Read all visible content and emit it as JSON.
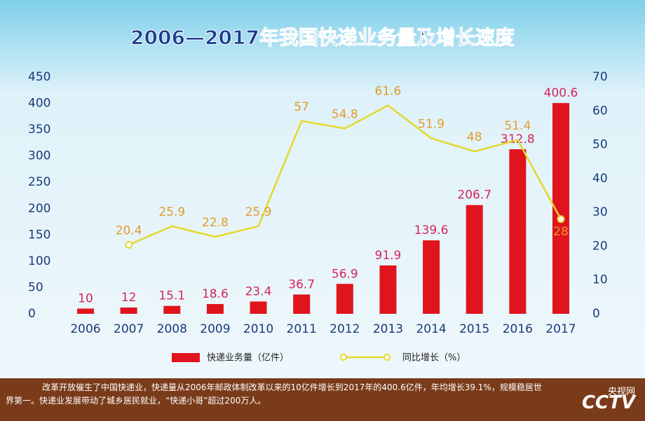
{
  "chart_data": {
    "type": "bar",
    "title": "2006—2017年我国快递业务量及增长速度",
    "categories": [
      "2006",
      "2007",
      "2008",
      "2009",
      "2010",
      "2011",
      "2012",
      "2013",
      "2014",
      "2015",
      "2016",
      "2017"
    ],
    "series": [
      {
        "name": "快递业务量（亿件）",
        "type": "bar",
        "color": "#e0141c",
        "label_color": "#d6245a",
        "values": [
          10,
          12,
          15.1,
          18.6,
          23.4,
          36.7,
          56.9,
          91.9,
          139.6,
          206.7,
          312.8,
          400.6
        ]
      },
      {
        "name": "同比增长（%）",
        "type": "line",
        "axis": "y2",
        "color": "#e5d82a",
        "label_color": "#e39a2a",
        "values": [
          null,
          20.4,
          25.9,
          22.8,
          25.9,
          57,
          54.8,
          61.6,
          51.9,
          48,
          51.4,
          28
        ]
      }
    ],
    "ylim": [
      0,
      450
    ],
    "yticks": [
      0,
      50,
      100,
      150,
      200,
      250,
      300,
      350,
      400,
      450
    ],
    "y2lim": [
      0,
      70
    ],
    "y2ticks": [
      0,
      10,
      20,
      30,
      40,
      50,
      60,
      70
    ]
  },
  "caption": "改革开放催生了中国快递业，快递量从2006年邮政体制改革以来的10亿件增长到2017年的400.6亿件，年均增长39.1%，规模稳居世界第一。快递业发展带动了城乡居民就业，“快递小哥”超过200万人。",
  "watermark": {
    "logo": "CCTV",
    "site": "央视网"
  }
}
